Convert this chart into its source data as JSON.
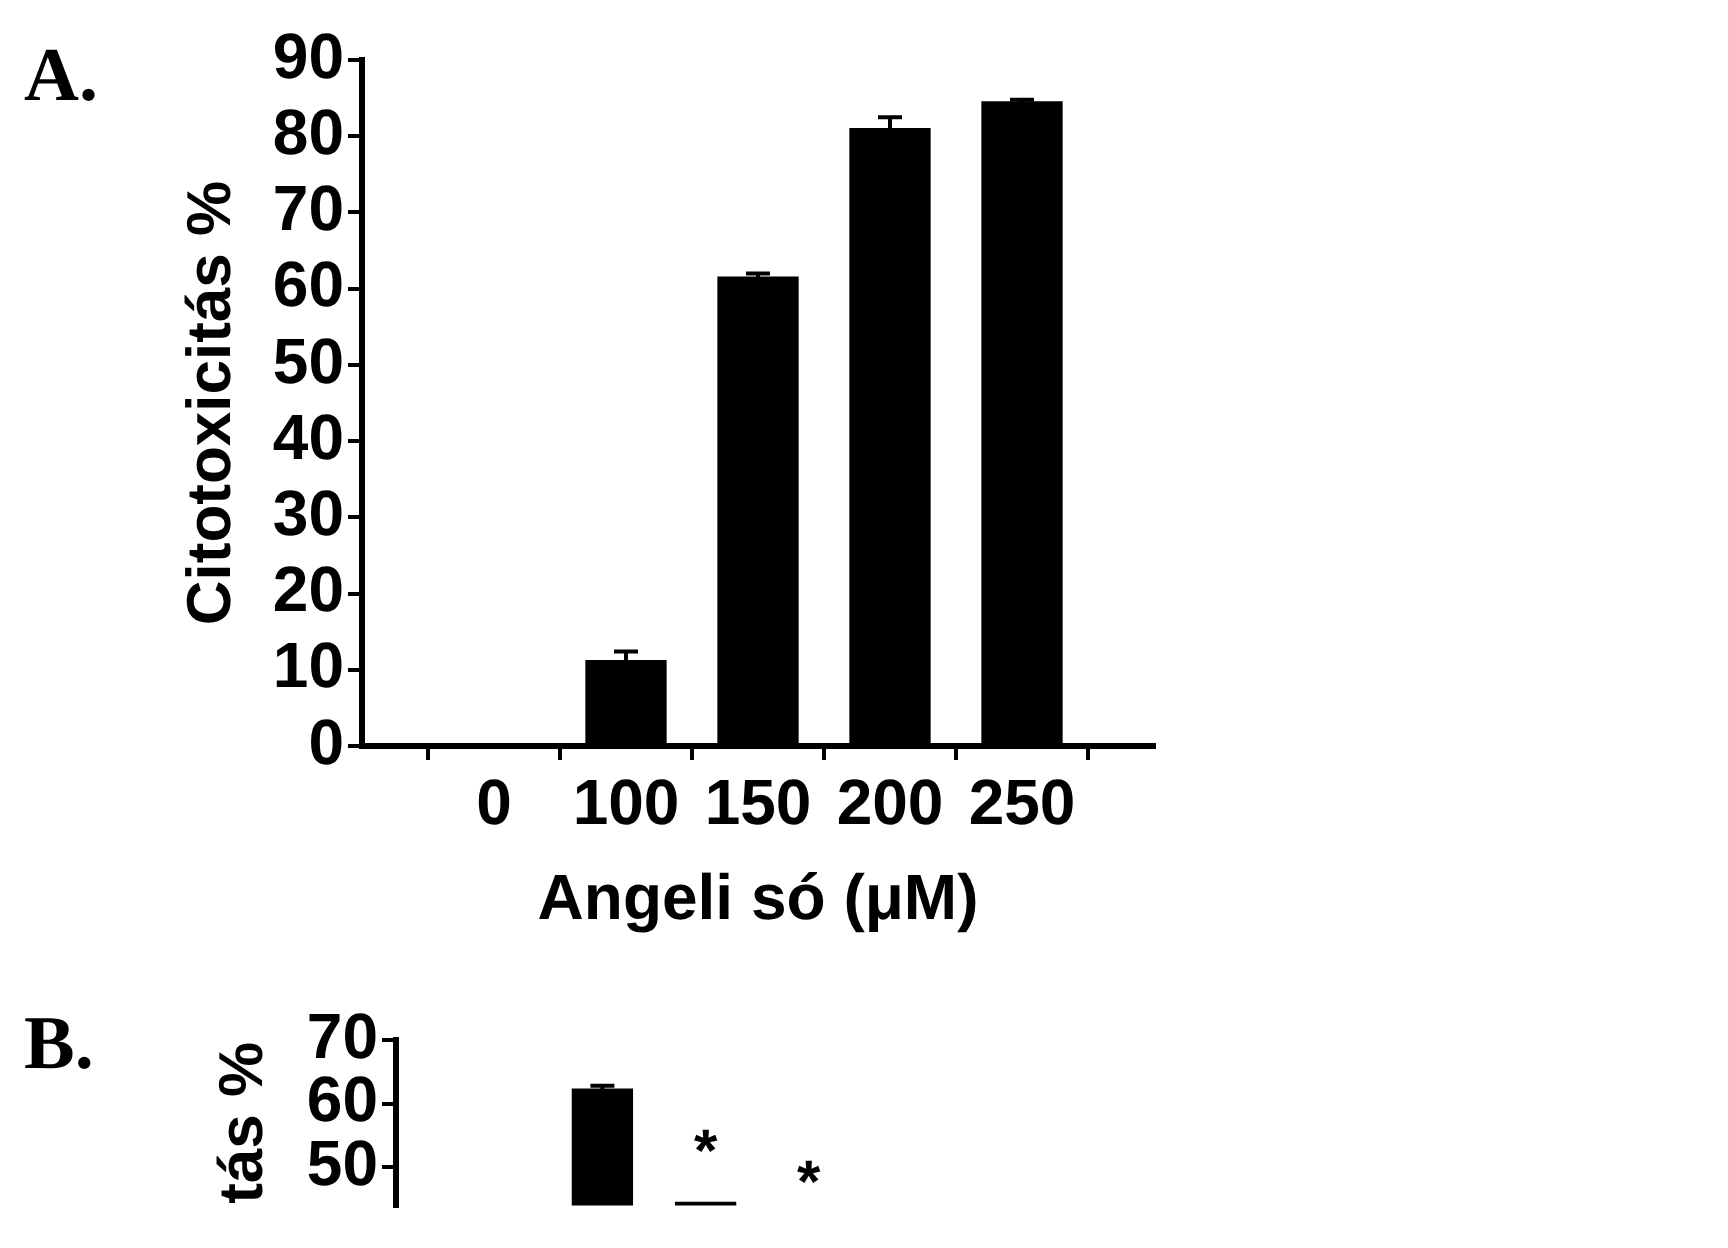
{
  "chart_data": [
    {
      "type": "bar",
      "title": "A.",
      "xlabel": "Angeli só (μM)",
      "ylabel": "Citotoxicitás %",
      "categories": [
        "0",
        "100",
        "150",
        "200",
        "250"
      ],
      "values": [
        0.3,
        11.2,
        61.5,
        81,
        84.5
      ],
      "errors": [
        null,
        1.2,
        0.5,
        1.5,
        0.3
      ],
      "color": "#000000",
      "ylim": [
        0,
        90
      ],
      "yticks": [
        0,
        10,
        20,
        30,
        40,
        50,
        60,
        70,
        80,
        90
      ],
      "grid": false,
      "legend": false
    },
    {
      "type": "bar",
      "title": "B.",
      "ylabel": "tás %",
      "categories": [
        null,
        null
      ],
      "values": [
        62.3,
        44.5
      ],
      "errors": [
        0.5,
        null
      ],
      "color": "#000000",
      "ylim": [
        44,
        70
      ],
      "yticks": [
        50,
        60,
        70
      ],
      "grid": false,
      "legend": false,
      "tick_labels": "y",
      "annotations": [
        "*",
        "*"
      ]
    }
  ]
}
